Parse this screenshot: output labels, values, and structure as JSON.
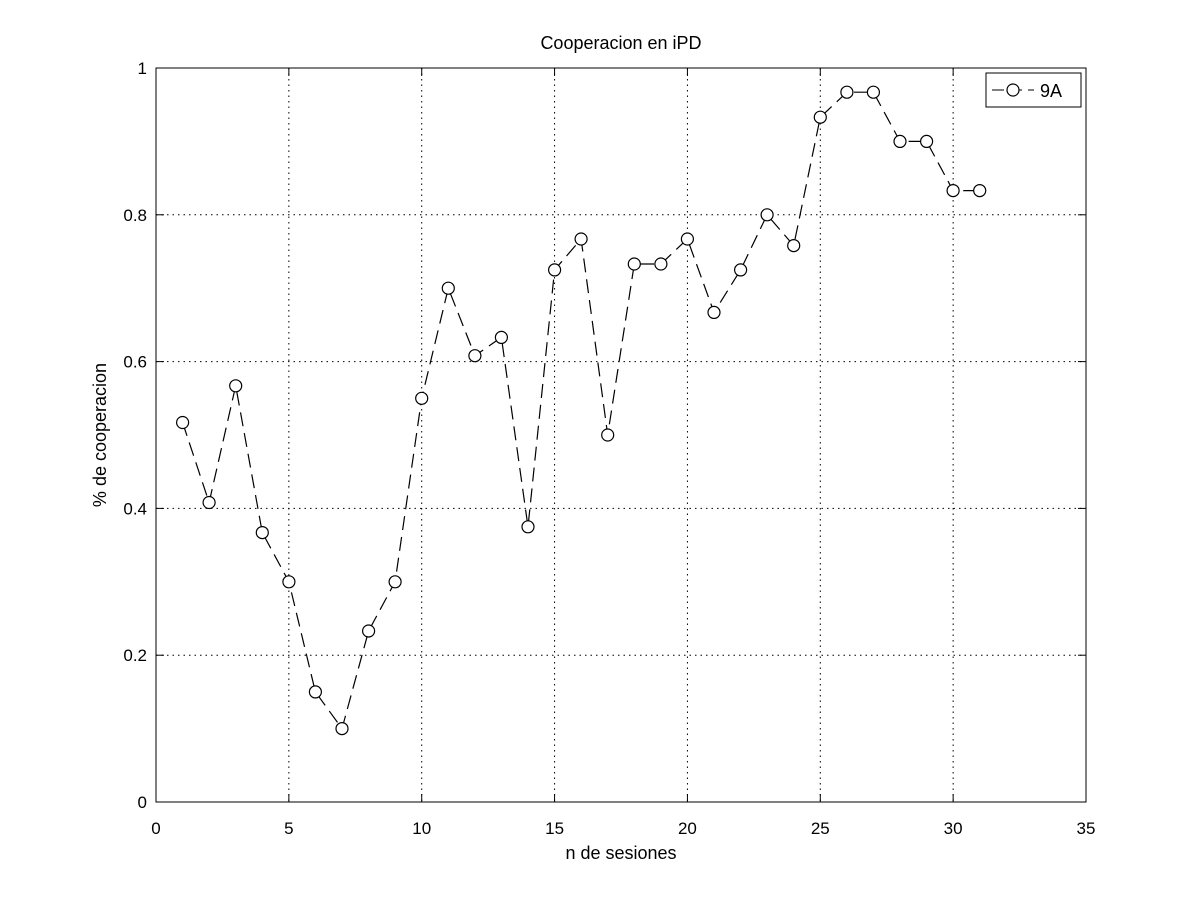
{
  "chart_data": {
    "type": "line",
    "title": "Cooperacion en iPD",
    "xlabel": "n de sesiones",
    "ylabel": "% de cooperacion",
    "xlim": [
      0,
      35
    ],
    "ylim": [
      0,
      1
    ],
    "xticks": [
      0,
      5,
      10,
      15,
      20,
      25,
      30,
      35
    ],
    "xtick_labels": [
      "0",
      "5",
      "10",
      "15",
      "20",
      "25",
      "30",
      "35"
    ],
    "yticks": [
      0,
      0.2,
      0.4,
      0.6,
      0.8,
      1
    ],
    "ytick_labels": [
      "0",
      "0.2",
      "0.4",
      "0.6",
      "0.8",
      "1"
    ],
    "grid": true,
    "legend_position": "top-right",
    "series": [
      {
        "name": "9A",
        "color": "#000000",
        "line_style": "dashed",
        "marker": "circle-open",
        "x": [
          1,
          2,
          3,
          4,
          5,
          6,
          7,
          8,
          9,
          10,
          11,
          12,
          13,
          14,
          15,
          16,
          17,
          18,
          19,
          20,
          21,
          22,
          23,
          24,
          25,
          26,
          27,
          28,
          29,
          30,
          31
        ],
        "y": [
          0.517,
          0.408,
          0.567,
          0.367,
          0.3,
          0.15,
          0.1,
          0.233,
          0.3,
          0.55,
          0.7,
          0.608,
          0.633,
          0.375,
          0.725,
          0.767,
          0.5,
          0.733,
          0.733,
          0.767,
          0.667,
          0.725,
          0.8,
          0.758,
          0.933,
          0.967,
          0.967,
          0.9,
          0.9,
          0.833,
          0.833
        ]
      }
    ]
  }
}
